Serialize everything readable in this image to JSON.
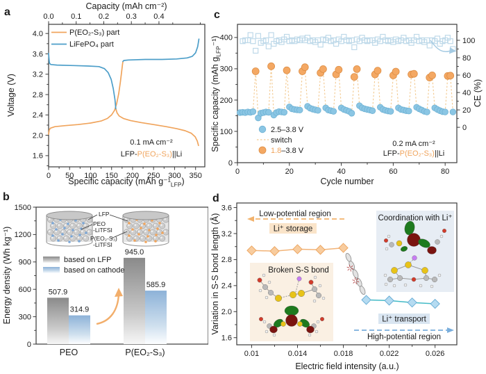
{
  "figure": {
    "panel_labels": {
      "a": "a",
      "b": "b",
      "c": "c",
      "d": "d"
    }
  },
  "chart_data": [
    {
      "panel": "a",
      "type": "line",
      "top_axis_title": "Capacity (mAh cm⁻²)",
      "top_ticks": [
        {
          "label": "0.0",
          "pos": 0
        },
        {
          "label": "0.1",
          "pos": 65.7
        },
        {
          "label": "0.2",
          "pos": 131.4
        },
        {
          "label": "0.3",
          "pos": 197.1
        },
        {
          "label": "0.4",
          "pos": 262.8
        }
      ],
      "xlabel_pre": "Specific capacity (mAh g⁻¹",
      "xlabel_sub": "LFP",
      "xlabel_post": ")",
      "ylabel": "Voltage (V)",
      "x_ticks": [
        "0",
        "50",
        "100",
        "150",
        "200",
        "250",
        "300",
        "350"
      ],
      "xlim": [
        0,
        372
      ],
      "y_ticks": [
        "1.6",
        "2.0",
        "2.4",
        "2.8",
        "3.2",
        "3.6",
        "4.0"
      ],
      "ylim": [
        1.38,
        4.18
      ],
      "series": [
        {
          "name": "P(EO₂-S₃) part",
          "color": "#F0A45C",
          "charge": [
            [
              0,
              2.02
            ],
            [
              1.5,
              2.1
            ],
            [
              4,
              2.14
            ],
            [
              15,
              2.17
            ],
            [
              40,
              2.19
            ],
            [
              70,
              2.21
            ],
            [
              100,
              2.24
            ],
            [
              125,
              2.28
            ],
            [
              140,
              2.33
            ],
            [
              150,
              2.4
            ],
            [
              157,
              2.49
            ],
            [
              162,
              2.62
            ],
            [
              167,
              2.82
            ],
            [
              171,
              3.05
            ],
            [
              174,
              3.25
            ],
            [
              176,
              3.4
            ],
            [
              177,
              3.45
            ]
          ],
          "discharge": [
            [
              160,
              2.52
            ],
            [
              163,
              2.44
            ],
            [
              168,
              2.38
            ],
            [
              178,
              2.33
            ],
            [
              195,
              2.29
            ],
            [
              220,
              2.25
            ],
            [
              250,
              2.21
            ],
            [
              280,
              2.17
            ],
            [
              305,
              2.13
            ],
            [
              325,
              2.09
            ],
            [
              340,
              2.04
            ],
            [
              349,
              1.97
            ],
            [
              354,
              1.89
            ],
            [
              357,
              1.8
            ]
          ]
        },
        {
          "name": "LiFePO₄ part",
          "color": "#4C9EC9",
          "charge": [
            [
              177,
              3.45
            ],
            [
              179,
              3.47
            ],
            [
              190,
              3.48
            ],
            [
              230,
              3.49
            ],
            [
              270,
              3.49
            ],
            [
              305,
              3.5
            ],
            [
              330,
              3.52
            ],
            [
              342,
              3.55
            ],
            [
              350,
              3.62
            ],
            [
              355,
              3.74
            ],
            [
              358,
              3.89
            ]
          ],
          "discharge": [
            [
              0,
              3.61
            ],
            [
              0.8,
              3.52
            ],
            [
              2,
              3.42
            ],
            [
              5,
              3.39
            ],
            [
              20,
              3.38
            ],
            [
              60,
              3.37
            ],
            [
              95,
              3.36
            ],
            [
              120,
              3.35
            ],
            [
              133,
              3.31
            ],
            [
              142,
              3.23
            ],
            [
              149,
              3.1
            ],
            [
              154,
              2.92
            ],
            [
              158,
              2.7
            ],
            [
              160,
              2.52
            ]
          ]
        }
      ],
      "note_line1": "0.1 mA cm⁻²",
      "note_line2": [
        {
          "t": "LFP-",
          "c": "#1a1a1a"
        },
        {
          "t": "P(EO₂-S₃)",
          "c": "#F0A45C"
        },
        {
          "t": "||Li",
          "c": "#1a1a1a"
        }
      ]
    },
    {
      "panel": "b",
      "type": "bar",
      "ylabel": "Energy density (Wh kg⁻¹)",
      "y_ticks": [
        "0",
        "300",
        "600",
        "900",
        "1200",
        "1500"
      ],
      "ylim": [
        0,
        1500
      ],
      "categories": [
        {
          "label": "PEO",
          "color": "#1a1a1a"
        },
        {
          "label": "P(EO₂-S₃)",
          "color": "#F0A45C"
        }
      ],
      "series": [
        {
          "name": "based on LFP",
          "values": [
            507.9,
            945.0
          ],
          "color_top": "#8A8A8A",
          "color_bottom": "#F7F7F7"
        },
        {
          "name": "based on cathode",
          "values": [
            314.9,
            585.9
          ],
          "color_top": "#8DB2D8",
          "color_bottom": "#FDFEFF"
        }
      ],
      "inset": {
        "lfp_label": "LFP",
        "peo_label": "PEO",
        "peo_color": "#7BA7D7",
        "peo_salt": "-LiTFSI",
        "peo2s3_label": "P(EO₂-S₃)",
        "peo2s3_color": "#F0A45C",
        "peo2s3_salt": "-LiTFSI"
      }
    },
    {
      "panel": "c",
      "type": "scatter",
      "ylabel_pre": "Specific capacity (mAh g",
      "ylabel_sub": "LFP",
      "ylabel_post": "⁻¹)",
      "xlabel": "Cycle number",
      "y2label": "CE (%)",
      "x_ticks": [
        "0",
        "20",
        "40",
        "60",
        "80"
      ],
      "xlim": [
        0,
        84.5
      ],
      "y_ticks": [
        "0",
        "100",
        "200",
        "300",
        "400"
      ],
      "ylim": [
        0,
        442
      ],
      "y2_ticks": [
        "0",
        "20",
        "40",
        "60",
        "80",
        "100"
      ],
      "ce_map": {
        "offset": 113,
        "scale": 2.78
      },
      "blue_series": {
        "name": "2.5–3.8 V",
        "color": "#8BC6E4",
        "points": [
          [
            1,
            160
          ],
          [
            2,
            161
          ],
          [
            3,
            160
          ],
          [
            4,
            162
          ],
          [
            5,
            161
          ],
          [
            6,
            163
          ],
          [
            8,
            143
          ],
          [
            9,
            158
          ],
          [
            10,
            160
          ],
          [
            11,
            162
          ],
          [
            12,
            161
          ],
          [
            14,
            152
          ],
          [
            15,
            160
          ],
          [
            16,
            163
          ],
          [
            17,
            162
          ],
          [
            18,
            161
          ],
          [
            20,
            178
          ],
          [
            21,
            172
          ],
          [
            22,
            170
          ],
          [
            23,
            169
          ],
          [
            24,
            168
          ],
          [
            27,
            180
          ],
          [
            28,
            174
          ],
          [
            29,
            171
          ],
          [
            30,
            169
          ],
          [
            31,
            167
          ],
          [
            34,
            175
          ],
          [
            35,
            168
          ],
          [
            36,
            166
          ],
          [
            37,
            164
          ],
          [
            40,
            175
          ],
          [
            41,
            170
          ],
          [
            42,
            167
          ],
          [
            43,
            164
          ],
          [
            44,
            158
          ],
          [
            47,
            182
          ],
          [
            48,
            175
          ],
          [
            49,
            172
          ],
          [
            50,
            170
          ],
          [
            51,
            168
          ],
          [
            52,
            166
          ],
          [
            55,
            177
          ],
          [
            56,
            170
          ],
          [
            57,
            167
          ],
          [
            58,
            165
          ],
          [
            59,
            164
          ],
          [
            62,
            175
          ],
          [
            63,
            170
          ],
          [
            64,
            168
          ],
          [
            65,
            166
          ],
          [
            66,
            165
          ],
          [
            69,
            177
          ],
          [
            70,
            172
          ],
          [
            71,
            168
          ],
          [
            72,
            164
          ],
          [
            73,
            162
          ],
          [
            76,
            175
          ],
          [
            77,
            170
          ],
          [
            78,
            166
          ],
          [
            79,
            163
          ],
          [
            80,
            162
          ],
          [
            83,
            162
          ]
        ]
      },
      "switch": {
        "label": "switch",
        "color": "#F3C98F"
      },
      "orange_series": {
        "name_parts": [
          {
            "t": "1.8",
            "c": "#F0A45C"
          },
          {
            "t": "–3.8 V",
            "c": "#1a1a1a"
          }
        ],
        "color": "#F4A863",
        "points": [
          [
            7,
            292
          ],
          [
            13,
            308
          ],
          [
            19,
            295
          ],
          [
            25,
            292
          ],
          [
            26,
            305
          ],
          [
            32,
            287
          ],
          [
            33,
            299
          ],
          [
            38,
            282
          ],
          [
            39,
            297
          ],
          [
            45,
            274
          ],
          [
            46,
            299
          ],
          [
            53,
            282
          ],
          [
            54,
            294
          ],
          [
            60,
            279
          ],
          [
            61,
            291
          ],
          [
            67,
            282
          ],
          [
            68,
            284
          ],
          [
            74,
            272
          ],
          [
            75,
            279
          ],
          [
            81,
            277
          ],
          [
            82,
            278
          ]
        ]
      },
      "ce_series": {
        "color": "#BED9E9",
        "points": [
          [
            2,
            99
          ],
          [
            3,
            100
          ],
          [
            4,
            100
          ],
          [
            5,
            106
          ],
          [
            6,
            99
          ],
          [
            7,
            88
          ],
          [
            8,
            105
          ],
          [
            9,
            97
          ],
          [
            10,
            99
          ],
          [
            11,
            100
          ],
          [
            12,
            93
          ],
          [
            13,
            106
          ],
          [
            14,
            96
          ],
          [
            15,
            99
          ],
          [
            16,
            100
          ],
          [
            17,
            98
          ],
          [
            18,
            101
          ],
          [
            19,
            104
          ],
          [
            20,
            99
          ],
          [
            21,
            100
          ],
          [
            22,
            99
          ],
          [
            23,
            101
          ],
          [
            24,
            100
          ],
          [
            25,
            102
          ],
          [
            26,
            100
          ],
          [
            27,
            103
          ],
          [
            28,
            99
          ],
          [
            29,
            100
          ],
          [
            30,
            98
          ],
          [
            31,
            100
          ],
          [
            32,
            95
          ],
          [
            33,
            101
          ],
          [
            34,
            100
          ],
          [
            35,
            103
          ],
          [
            36,
            99
          ],
          [
            37,
            100
          ],
          [
            38,
            96
          ],
          [
            39,
            101
          ],
          [
            40,
            99
          ],
          [
            41,
            104
          ],
          [
            42,
            100
          ],
          [
            43,
            99
          ],
          [
            44,
            100
          ],
          [
            45,
            92
          ],
          [
            46,
            101
          ],
          [
            47,
            99
          ],
          [
            48,
            103
          ],
          [
            49,
            100
          ],
          [
            50,
            99
          ],
          [
            51,
            100
          ],
          [
            52,
            100
          ],
          [
            53,
            97
          ],
          [
            54,
            101
          ],
          [
            55,
            99
          ],
          [
            56,
            104
          ],
          [
            57,
            100
          ],
          [
            58,
            99
          ],
          [
            59,
            100
          ],
          [
            60,
            98
          ],
          [
            61,
            101
          ],
          [
            62,
            99
          ],
          [
            63,
            100
          ],
          [
            64,
            103
          ],
          [
            65,
            99
          ],
          [
            66,
            100
          ],
          [
            67,
            97
          ],
          [
            68,
            100
          ],
          [
            69,
            104
          ],
          [
            70,
            99
          ],
          [
            71,
            100
          ],
          [
            72,
            98
          ],
          [
            73,
            100
          ],
          [
            74,
            94
          ],
          [
            75,
            100
          ],
          [
            76,
            99
          ],
          [
            77,
            102
          ],
          [
            78,
            96
          ],
          [
            79,
            99
          ],
          [
            80,
            100
          ],
          [
            81,
            103
          ],
          [
            82,
            99
          ],
          [
            83,
            90
          ]
        ]
      },
      "note_line1": "0.2 mA cm⁻²",
      "note_line2": [
        {
          "t": "LFP-",
          "c": "#1a1a1a"
        },
        {
          "t": "P(EO₂-S₃)",
          "c": "#F0A45C"
        },
        {
          "t": "||Li",
          "c": "#1a1a1a"
        }
      ]
    },
    {
      "panel": "d",
      "type": "line",
      "ylabel": "Variation in S-S bond length (Å)",
      "xlabel": "Electric field intensity (a.u.)",
      "x_ticks": [
        "0.01",
        "0.014",
        "0.018",
        "0.022",
        "0.026"
      ],
      "xlim": [
        0.0087,
        0.0279
      ],
      "y_ticks": [
        "1.6",
        "2.0",
        "2.4",
        "2.8",
        "3.2",
        "3.6"
      ],
      "ylim": [
        1.49,
        3.67
      ],
      "orange_series": {
        "x": [
          0.01,
          0.012,
          0.014,
          0.016,
          0.018
        ],
        "y": [
          2.94,
          2.93,
          2.96,
          2.95,
          2.98
        ],
        "line_color": "#F2B377",
        "fill": "#F8CC9E",
        "edge": "#EDA763"
      },
      "blue_series": {
        "x": [
          0.02,
          0.022,
          0.024,
          0.026
        ],
        "y": [
          2.18,
          2.17,
          2.14,
          2.12
        ],
        "line_color": "#42BAC6",
        "fill": "#B5DBF1",
        "edge": "#69AED6"
      },
      "annotations": {
        "low_region": "Low-potential region",
        "li_storage": "Li⁺ storage",
        "coordination": "Coordination with Li⁺",
        "broken_bond": "Broken S-S bond",
        "li_transport": "Li⁺ transport",
        "high_region": "High-potential region"
      }
    }
  ]
}
